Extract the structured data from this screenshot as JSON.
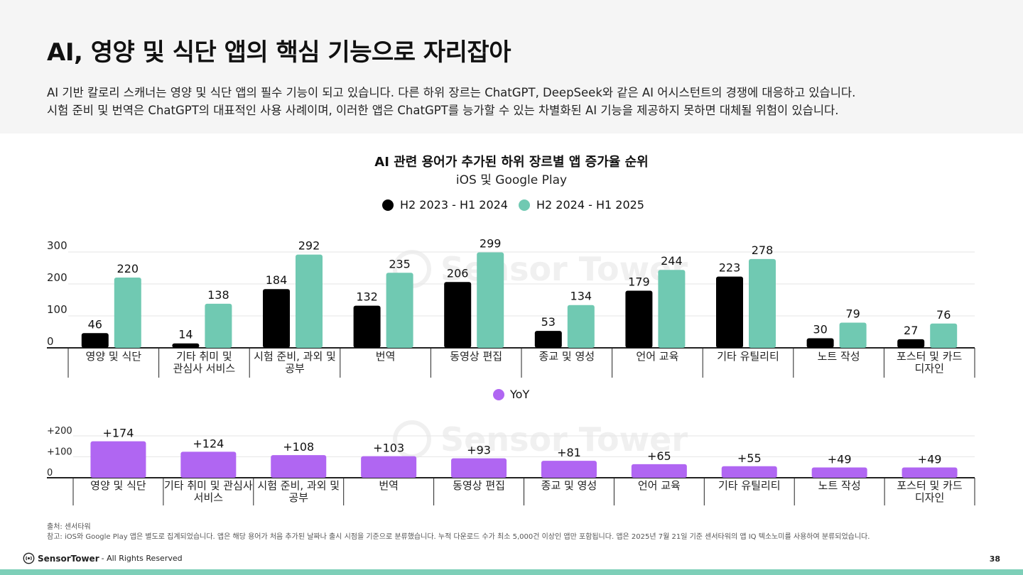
{
  "title": "AI, 영양 및 식단 앱의 핵심 기능으로 자리잡아",
  "description": [
    "AI 기반 칼로리 스캐너는 영양 및 식단 앱의 필수 기능이 되고 있습니다. 다른 하위 장르는 ChatGPT, DeepSeek와 같은 AI 어시스턴트의 경쟁에 대응하고 있습니다.",
    "시험 준비 및 번역은 ChatGPT의 대표적인 사용 사례이며, 이러한 앱은 ChatGPT를 능가할 수 있는 차별화된 AI 기능을 제공하지 못하면 대체될 위험이 있습니다."
  ],
  "colors": {
    "series1": "#000000",
    "series2": "#70c9b2",
    "yoy": "#b066f2",
    "axis": "#222222",
    "grid": "#e6e6e6",
    "watermark": "#f0f0f0"
  },
  "watermark": "Sensor Tower",
  "chart_data": [
    {
      "type": "bar",
      "title": "AI 관련 용어가 추가된 하위 장르별 앱 증가율 순위",
      "subtitle": "iOS 및 Google Play",
      "legend_position": "top-center",
      "grid": true,
      "ylim": [
        0,
        300
      ],
      "yticks": [
        "0",
        "100",
        "200",
        "300"
      ],
      "categories": [
        [
          "영양 및 식단"
        ],
        [
          "기타 취미 및",
          "관심사 서비스"
        ],
        [
          "시험 준비, 과외 및",
          "공부"
        ],
        [
          "번역"
        ],
        [
          "동영상 편집"
        ],
        [
          "종교 및 영성"
        ],
        [
          "언어 교육"
        ],
        [
          "기타 유틸리티"
        ],
        [
          "노트 작성"
        ],
        [
          "포스터 및 카드",
          "디자인"
        ]
      ],
      "series": [
        {
          "name": "H2 2023 - H1 2024",
          "values": [
            46,
            14,
            184,
            132,
            206,
            53,
            179,
            223,
            30,
            27
          ]
        },
        {
          "name": "H2 2024 - H1 2025",
          "values": [
            220,
            138,
            292,
            235,
            299,
            134,
            244,
            278,
            79,
            76
          ]
        }
      ]
    },
    {
      "type": "bar",
      "title": "",
      "legend_position": "top-center",
      "grid": true,
      "ylim": [
        0,
        200
      ],
      "yticks": [
        "0",
        "+100",
        "+200"
      ],
      "categories": [
        [
          "영양 및 식단"
        ],
        [
          "기타 취미 및 관심사",
          "서비스"
        ],
        [
          "시험 준비, 과외 및",
          "공부"
        ],
        [
          "번역"
        ],
        [
          "동영상 편집"
        ],
        [
          "종교 및 영성"
        ],
        [
          "언어 교육"
        ],
        [
          "기타 유틸리티"
        ],
        [
          "노트 작성"
        ],
        [
          "포스터 및 카드",
          "디자인"
        ]
      ],
      "series": [
        {
          "name": "YoY",
          "values": [
            174,
            124,
            108,
            103,
            93,
            81,
            65,
            55,
            49,
            49
          ],
          "labels": [
            "+174",
            "+124",
            "+108",
            "+103",
            "+93",
            "+81",
            "+65",
            "+55",
            "+49",
            "+49"
          ]
        }
      ]
    }
  ],
  "footer": {
    "source": "출처: 센서타워",
    "note": "참고: iOS와 Google Play 앱은 별도로 집계되었습니다. 앱은 해당 용어가 처음 추가된 날짜나 출시 시점을 기준으로 분류했습니다. 누적 다운로드 수가 최소 5,000건 이상인 앱만 포함됩니다. 앱은 2025년 7월 21일 기준 센서타워의 앱 IQ 텍소노미를 사용하여 분류되었습니다.",
    "brand": "SensorTower",
    "rights": "- All Rights Reserved",
    "page": "38"
  }
}
